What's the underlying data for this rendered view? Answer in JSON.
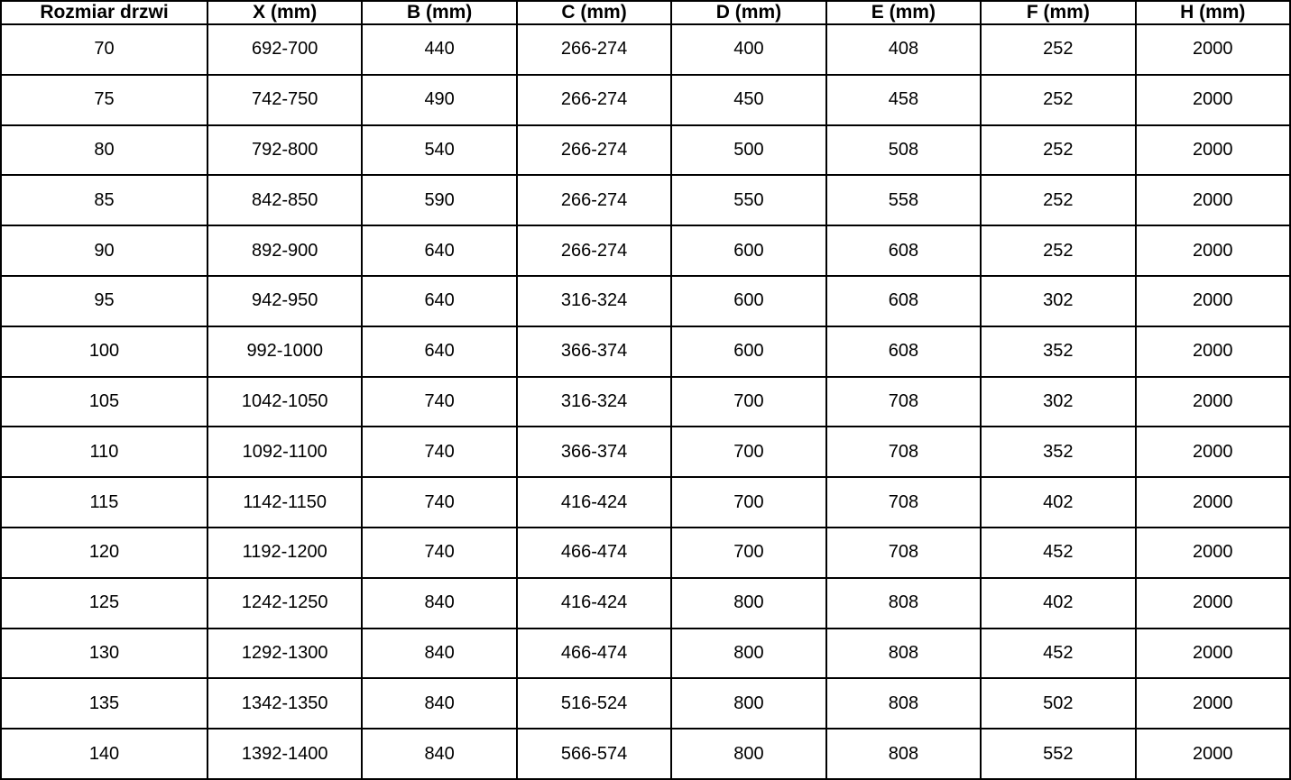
{
  "table": {
    "columns": [
      "Rozmiar drzwi",
      "X (mm)",
      "B (mm)",
      "C (mm)",
      "D (mm)",
      "E (mm)",
      "F (mm)",
      "H (mm)"
    ],
    "rows": [
      [
        "70",
        "692-700",
        "440",
        "266-274",
        "400",
        "408",
        "252",
        "2000"
      ],
      [
        "75",
        "742-750",
        "490",
        "266-274",
        "450",
        "458",
        "252",
        "2000"
      ],
      [
        "80",
        "792-800",
        "540",
        "266-274",
        "500",
        "508",
        "252",
        "2000"
      ],
      [
        "85",
        "842-850",
        "590",
        "266-274",
        "550",
        "558",
        "252",
        "2000"
      ],
      [
        "90",
        "892-900",
        "640",
        "266-274",
        "600",
        "608",
        "252",
        "2000"
      ],
      [
        "95",
        "942-950",
        "640",
        "316-324",
        "600",
        "608",
        "302",
        "2000"
      ],
      [
        "100",
        "992-1000",
        "640",
        "366-374",
        "600",
        "608",
        "352",
        "2000"
      ],
      [
        "105",
        "1042-1050",
        "740",
        "316-324",
        "700",
        "708",
        "302",
        "2000"
      ],
      [
        "110",
        "1092-1100",
        "740",
        "366-374",
        "700",
        "708",
        "352",
        "2000"
      ],
      [
        "115",
        "1142-1150",
        "740",
        "416-424",
        "700",
        "708",
        "402",
        "2000"
      ],
      [
        "120",
        "1192-1200",
        "740",
        "466-474",
        "700",
        "708",
        "452",
        "2000"
      ],
      [
        "125",
        "1242-1250",
        "840",
        "416-424",
        "800",
        "808",
        "402",
        "2000"
      ],
      [
        "130",
        "1292-1300",
        "840",
        "466-474",
        "800",
        "808",
        "452",
        "2000"
      ],
      [
        "135",
        "1342-1350",
        "840",
        "516-524",
        "800",
        "808",
        "502",
        "2000"
      ],
      [
        "140",
        "1392-1400",
        "840",
        "566-574",
        "800",
        "808",
        "552",
        "2000"
      ]
    ]
  },
  "colors": {
    "border": "#000000",
    "text": "#000000",
    "background": "#ffffff"
  }
}
